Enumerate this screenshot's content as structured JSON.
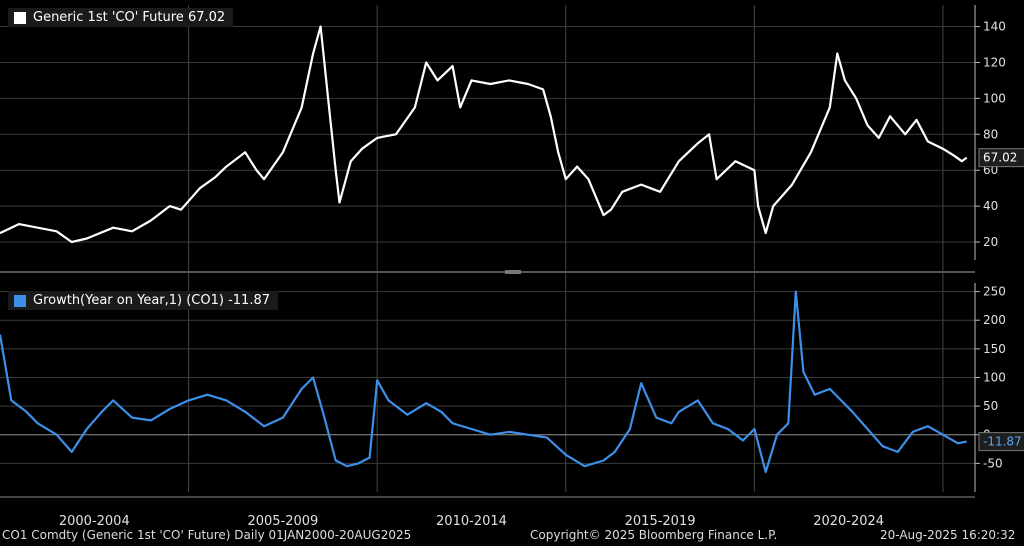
{
  "chart_data": [
    {
      "type": "line",
      "legend_label": "Generic 1st 'CO' Future 67.02",
      "last_value_label": "67.02",
      "color": "#ffffff",
      "ylim": [
        10,
        152
      ],
      "yticks": [
        20,
        40,
        60,
        80,
        100,
        120,
        140
      ],
      "x": [
        2000.0,
        2000.5,
        2001.0,
        2001.5,
        2001.9,
        2002.3,
        2003.0,
        2003.5,
        2004.0,
        2004.5,
        2004.8,
        2005.3,
        2005.7,
        2006.0,
        2006.5,
        2006.8,
        2007.0,
        2007.5,
        2007.8,
        2008.0,
        2008.3,
        2008.5,
        2008.7,
        2008.9,
        2009.0,
        2009.3,
        2009.6,
        2010.0,
        2010.5,
        2011.0,
        2011.3,
        2011.6,
        2012.0,
        2012.2,
        2012.5,
        2013.0,
        2013.5,
        2014.0,
        2014.4,
        2014.6,
        2014.8,
        2015.0,
        2015.3,
        2015.6,
        2016.0,
        2016.2,
        2016.5,
        2017.0,
        2017.5,
        2018.0,
        2018.5,
        2018.8,
        2019.0,
        2019.5,
        2020.0,
        2020.1,
        2020.3,
        2020.5,
        2021.0,
        2021.5,
        2022.0,
        2022.2,
        2022.4,
        2022.7,
        2023.0,
        2023.3,
        2023.6,
        2024.0,
        2024.3,
        2024.6,
        2025.0,
        2025.3,
        2025.5,
        2025.63
      ],
      "values": [
        25,
        30,
        28,
        26,
        20,
        22,
        28,
        26,
        32,
        40,
        38,
        50,
        56,
        62,
        70,
        60,
        55,
        70,
        85,
        95,
        125,
        140,
        100,
        60,
        42,
        65,
        72,
        78,
        80,
        95,
        120,
        110,
        118,
        95,
        110,
        108,
        110,
        108,
        105,
        90,
        70,
        55,
        62,
        55,
        35,
        38,
        48,
        52,
        48,
        65,
        75,
        80,
        55,
        65,
        60,
        40,
        25,
        40,
        52,
        70,
        95,
        125,
        110,
        100,
        85,
        78,
        90,
        80,
        88,
        76,
        72,
        68,
        65,
        67
      ]
    },
    {
      "type": "line",
      "legend_label": "Growth(Year on Year,1) (CO1) -11.87",
      "last_value_label": "-11.87",
      "color": "#3d8fe8",
      "ylim": [
        -100,
        265
      ],
      "yticks": [
        -50,
        0,
        50,
        100,
        150,
        200,
        250
      ],
      "x": [
        2000.0,
        2000.3,
        2000.7,
        2001.0,
        2001.5,
        2001.9,
        2002.3,
        2002.7,
        2003.0,
        2003.5,
        2004.0,
        2004.5,
        2005.0,
        2005.5,
        2006.0,
        2006.5,
        2007.0,
        2007.5,
        2008.0,
        2008.3,
        2008.6,
        2008.9,
        2009.2,
        2009.5,
        2009.8,
        2010.0,
        2010.3,
        2010.8,
        2011.3,
        2011.7,
        2012.0,
        2012.5,
        2013.0,
        2013.5,
        2014.0,
        2014.5,
        2015.0,
        2015.5,
        2016.0,
        2016.3,
        2016.7,
        2017.0,
        2017.4,
        2017.8,
        2018.0,
        2018.5,
        2018.9,
        2019.3,
        2019.7,
        2020.0,
        2020.3,
        2020.6,
        2020.9,
        2021.1,
        2021.3,
        2021.6,
        2022.0,
        2022.3,
        2022.6,
        2023.0,
        2023.4,
        2023.8,
        2024.2,
        2024.6,
        2025.0,
        2025.4,
        2025.63
      ],
      "values": [
        175,
        60,
        40,
        20,
        0,
        -30,
        10,
        40,
        60,
        30,
        25,
        45,
        60,
        70,
        60,
        40,
        15,
        30,
        80,
        100,
        30,
        -45,
        -55,
        -50,
        -40,
        95,
        60,
        35,
        55,
        40,
        20,
        10,
        0,
        5,
        0,
        -5,
        -35,
        -55,
        -45,
        -30,
        10,
        90,
        30,
        20,
        40,
        60,
        20,
        10,
        -10,
        10,
        -65,
        0,
        20,
        250,
        110,
        70,
        80,
        60,
        40,
        10,
        -20,
        -30,
        5,
        15,
        0,
        -15,
        -12
      ]
    }
  ],
  "xticks": [
    {
      "label": "2000-2004",
      "center": 2002.5
    },
    {
      "label": "2005-2009",
      "center": 2007.5
    },
    {
      "label": "2010-2014",
      "center": 2012.5
    },
    {
      "label": "2015-2019",
      "center": 2017.5
    },
    {
      "label": "2020-2024",
      "center": 2022.5
    }
  ],
  "footer": {
    "left": "CO1 Comdty (Generic 1st 'CO' Future)  Daily 01JAN2000-20AUG2025",
    "center": "Copyright© 2025 Bloomberg Finance L.P.",
    "right": "20-Aug-2025 16:20:32"
  }
}
